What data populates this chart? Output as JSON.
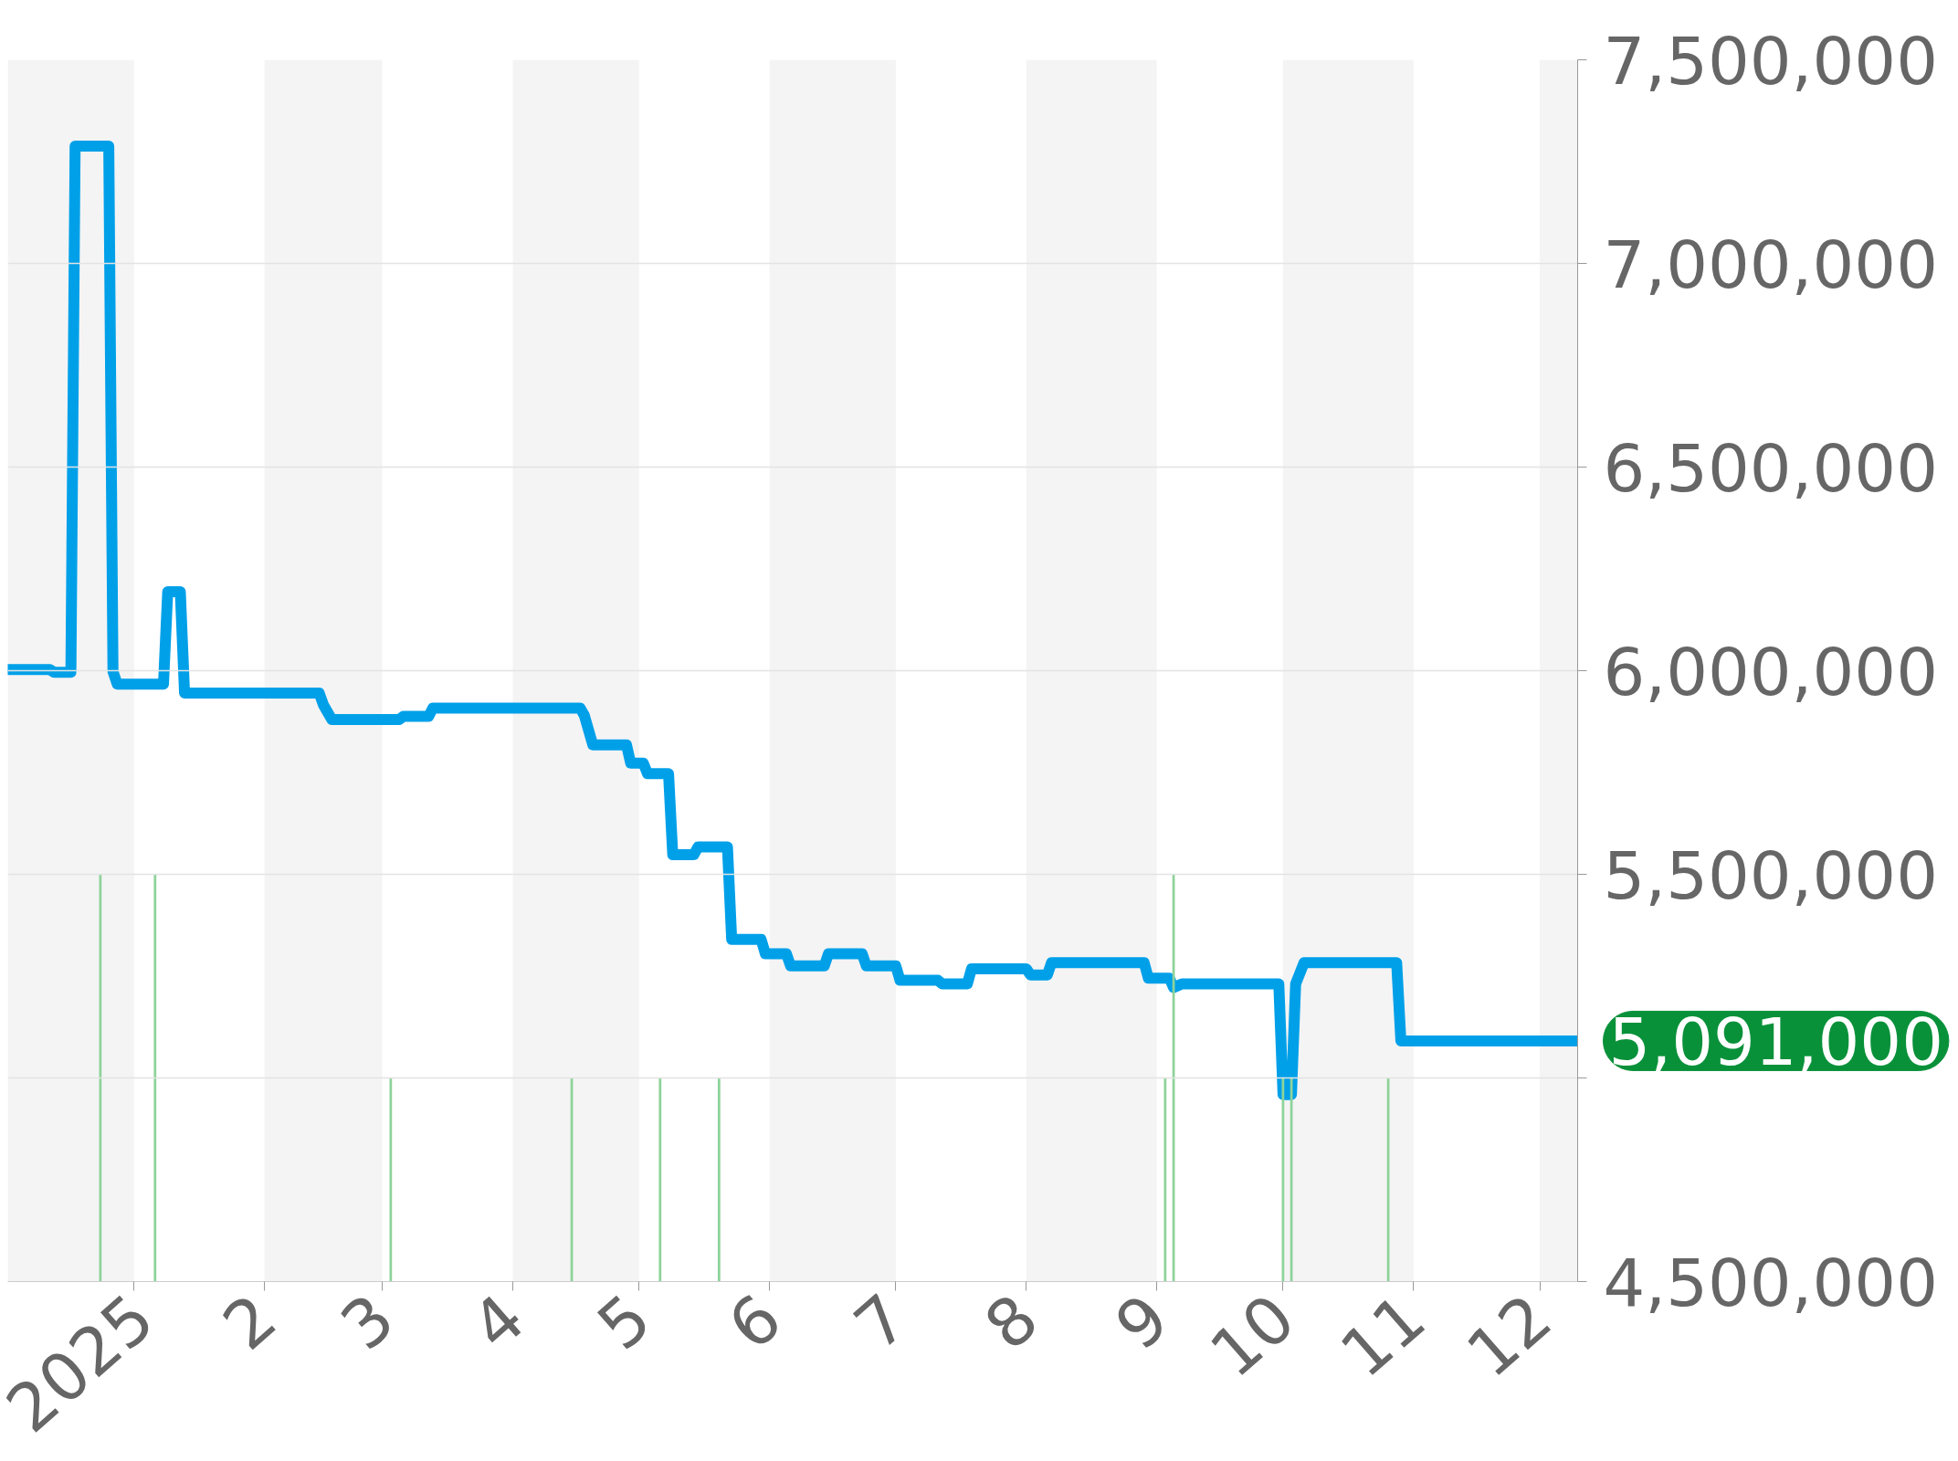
{
  "chart_data": {
    "type": "line",
    "x": [
      "2024-12-02",
      "2024-12-12",
      "2024-12-13",
      "2024-12-17",
      "2024-12-18",
      "2024-12-26",
      "2024-12-27",
      "2024-12-28",
      "2025-01-08",
      "2025-01-09",
      "2025-01-12",
      "2025-01-13",
      "2025-02-14",
      "2025-02-15",
      "2025-02-17",
      "2025-03-05",
      "2025-03-06",
      "2025-03-12",
      "2025-03-13",
      "2025-04-17",
      "2025-04-18",
      "2025-04-20",
      "2025-04-28",
      "2025-04-29",
      "2025-05-02",
      "2025-05-03",
      "2025-05-08",
      "2025-05-09",
      "2025-05-14",
      "2025-05-15",
      "2025-05-22",
      "2025-05-23",
      "2025-05-30",
      "2025-05-31",
      "2025-06-05",
      "2025-06-06",
      "2025-06-14",
      "2025-06-15",
      "2025-06-23",
      "2025-06-24",
      "2025-07-01",
      "2025-07-02",
      "2025-07-11",
      "2025-07-12",
      "2025-07-18",
      "2025-07-19",
      "2025-08-01",
      "2025-08-02",
      "2025-08-06",
      "2025-08-07",
      "2025-08-29",
      "2025-08-30",
      "2025-09-04",
      "2025-09-05",
      "2025-09-07",
      "2025-09-30",
      "2025-10-01",
      "2025-10-03",
      "2025-10-04",
      "2025-10-06",
      "2025-10-28",
      "2025-10-29",
      "2025-12-10"
    ],
    "series": [
      {
        "color": "#00a0e9",
        "values": [
          6003000,
          6003000,
          5996000,
          5996000,
          7288000,
          7288000,
          5998000,
          5967000,
          5967000,
          6194000,
          6194000,
          5945000,
          5945000,
          5916000,
          5880000,
          5880000,
          5888000,
          5888000,
          5908000,
          5908000,
          5890000,
          5818000,
          5818000,
          5773000,
          5773000,
          5747000,
          5747000,
          5548000,
          5548000,
          5567000,
          5567000,
          5340000,
          5340000,
          5305000,
          5305000,
          5275000,
          5275000,
          5305000,
          5305000,
          5275000,
          5275000,
          5240000,
          5240000,
          5231000,
          5231000,
          5268000,
          5268000,
          5253000,
          5253000,
          5283000,
          5283000,
          5245000,
          5245000,
          5222000,
          5231000,
          5231000,
          4959000,
          4959000,
          5231000,
          5283000,
          5283000,
          5091000,
          5091000
        ]
      },
      {
        "type": "bar",
        "color": "#8ed39a",
        "x": [
          "2024-12-24",
          "2025-01-06",
          "2025-03-03",
          "2025-04-15",
          "2025-05-06",
          "2025-05-20",
          "2025-09-03",
          "2025-09-05",
          "2025-10-01",
          "2025-10-03",
          "2025-10-26"
        ],
        "base": [
          4500000,
          4500000,
          4500000,
          4500000,
          4500000,
          4500000,
          4500000,
          4500000,
          4500000,
          4500000,
          4500000
        ],
        "values": [
          1000000,
          1000000,
          500000,
          500000,
          500000,
          500000,
          500000,
          1000000,
          500000,
          500000,
          500000
        ]
      }
    ],
    "xlim": [
      "2024-12-02",
      "2025-12-10"
    ],
    "ylim": [
      4500000,
      7500000
    ],
    "xticks": [
      {
        "value": "2025-01-01",
        "label": "2025"
      },
      {
        "value": "2025-02-01",
        "label": "2"
      },
      {
        "value": "2025-03-01",
        "label": "3"
      },
      {
        "value": "2025-04-01",
        "label": "4"
      },
      {
        "value": "2025-05-01",
        "label": "5"
      },
      {
        "value": "2025-06-01",
        "label": "6"
      },
      {
        "value": "2025-07-01",
        "label": "7"
      },
      {
        "value": "2025-08-01",
        "label": "8"
      },
      {
        "value": "2025-09-01",
        "label": "9"
      },
      {
        "value": "2025-10-01",
        "label": "10"
      },
      {
        "value": "2025-11-01",
        "label": "11"
      },
      {
        "value": "2025-12-01",
        "label": "12"
      }
    ],
    "yticks": [
      {
        "value": 4500000,
        "label": "4,500,000"
      },
      {
        "value": 5000000,
        "label": null
      },
      {
        "value": 5500000,
        "label": "5,500,000"
      },
      {
        "value": 6000000,
        "label": "6,000,000"
      },
      {
        "value": 6500000,
        "label": "6,500,000"
      },
      {
        "value": 7000000,
        "label": "7,000,000"
      },
      {
        "value": 7500000,
        "label": "7,500,000"
      }
    ],
    "bands": [
      {
        "axis": "x",
        "from": "2024-12-02",
        "to": "2025-01-01",
        "color": "#f4f4f4"
      },
      {
        "axis": "x",
        "from": "2025-02-01",
        "to": "2025-03-01",
        "color": "#f4f4f4"
      },
      {
        "axis": "x",
        "from": "2025-04-01",
        "to": "2025-05-01",
        "color": "#f4f4f4"
      },
      {
        "axis": "x",
        "from": "2025-06-01",
        "to": "2025-07-01",
        "color": "#f4f4f4"
      },
      {
        "axis": "x",
        "from": "2025-08-01",
        "to": "2025-09-01",
        "color": "#f4f4f4"
      },
      {
        "axis": "x",
        "from": "2025-10-01",
        "to": "2025-11-01",
        "color": "#f4f4f4"
      },
      {
        "axis": "x",
        "from": "2025-12-01",
        "to": "2025-12-10",
        "color": "#f4f4f4"
      }
    ],
    "annotations": [
      {
        "text": "5,091,000",
        "x": "2025-12-10",
        "y": 5091000
      }
    ],
    "grid": "y"
  }
}
